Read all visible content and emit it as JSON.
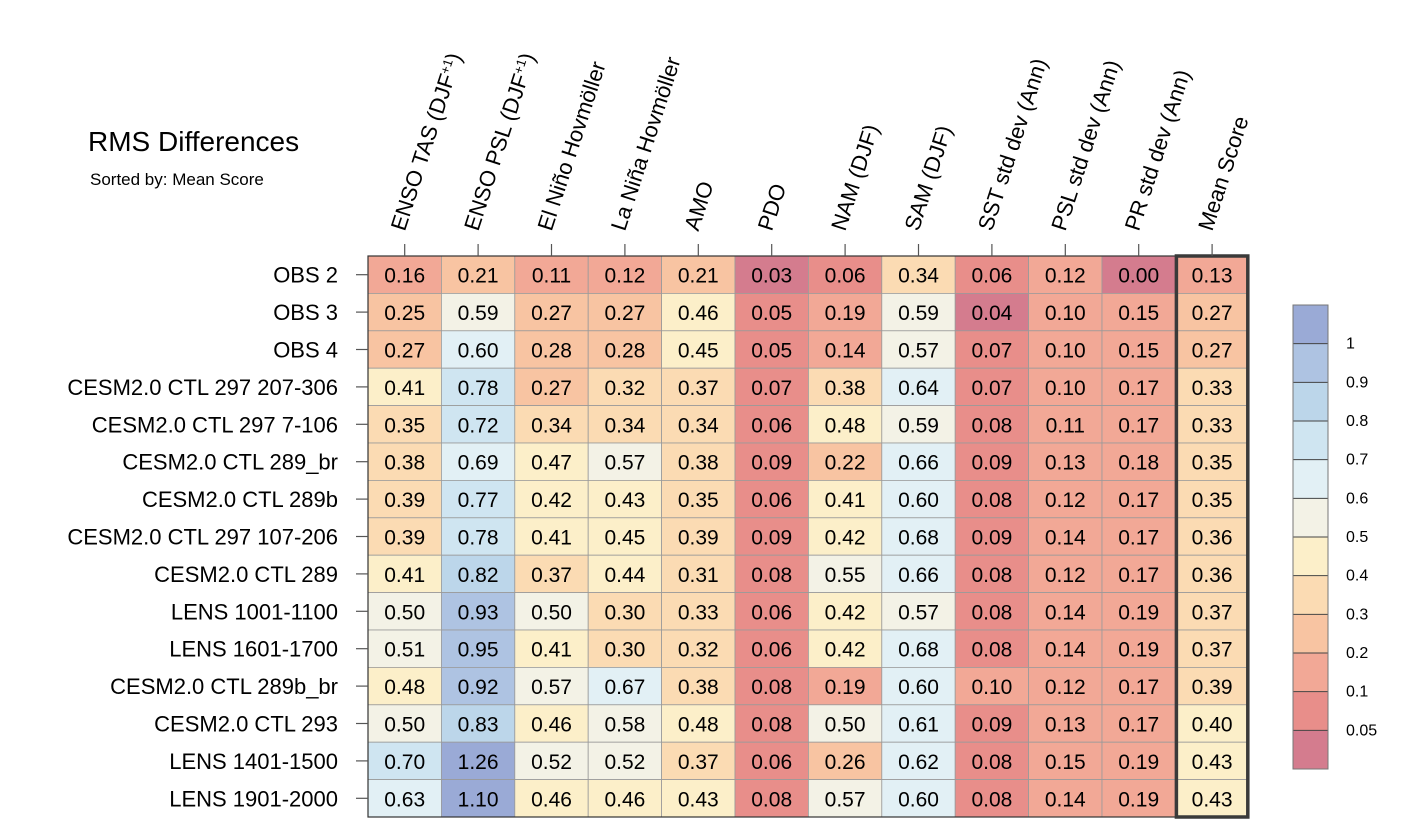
{
  "chart_data": {
    "type": "heatmap",
    "title": "RMS Differences",
    "subtitle": "Sorted by: Mean Score",
    "columns": [
      {
        "main": "ENSO TAS (DJF",
        "sup": "+1",
        "tail": ")"
      },
      {
        "main": "ENSO PSL (DJF",
        "sup": "+1",
        "tail": ")"
      },
      {
        "main": "El Niño Hovmöller",
        "sup": "",
        "tail": ""
      },
      {
        "main": "La Niña Hovmöller",
        "sup": "",
        "tail": ""
      },
      {
        "main": "AMO",
        "sup": "",
        "tail": ""
      },
      {
        "main": "PDO",
        "sup": "",
        "tail": ""
      },
      {
        "main": "NAM (DJF)",
        "sup": "",
        "tail": ""
      },
      {
        "main": "SAM (DJF)",
        "sup": "",
        "tail": ""
      },
      {
        "main": "SST std dev (Ann)",
        "sup": "",
        "tail": ""
      },
      {
        "main": "PSL std dev (Ann)",
        "sup": "",
        "tail": ""
      },
      {
        "main": "PR std dev (Ann)",
        "sup": "",
        "tail": ""
      },
      {
        "main": "Mean Score",
        "sup": "",
        "tail": ""
      }
    ],
    "rows": [
      "OBS 2",
      "OBS 3",
      "OBS 4",
      "CESM2.0 CTL 297 207-306",
      "CESM2.0 CTL 297 7-106",
      "CESM2.0 CTL 289_br",
      "CESM2.0 CTL 289b",
      "CESM2.0 CTL 297 107-206",
      "CESM2.0 CTL 289",
      "LENS 1001-1100",
      "LENS 1601-1700",
      "CESM2.0 CTL 289b_br",
      "CESM2.0 CTL 293",
      "LENS 1401-1500",
      "LENS 1901-2000"
    ],
    "values": [
      [
        "0.16",
        "0.21",
        "0.11",
        "0.12",
        "0.21",
        "0.03",
        "0.06",
        "0.34",
        "0.06",
        "0.12",
        "0.00",
        "0.13"
      ],
      [
        "0.25",
        "0.59",
        "0.27",
        "0.27",
        "0.46",
        "0.05",
        "0.19",
        "0.59",
        "0.04",
        "0.10",
        "0.15",
        "0.27"
      ],
      [
        "0.27",
        "0.60",
        "0.28",
        "0.28",
        "0.45",
        "0.05",
        "0.14",
        "0.57",
        "0.07",
        "0.10",
        "0.15",
        "0.27"
      ],
      [
        "0.41",
        "0.78",
        "0.27",
        "0.32",
        "0.37",
        "0.07",
        "0.38",
        "0.64",
        "0.07",
        "0.10",
        "0.17",
        "0.33"
      ],
      [
        "0.35",
        "0.72",
        "0.34",
        "0.34",
        "0.34",
        "0.06",
        "0.48",
        "0.59",
        "0.08",
        "0.11",
        "0.17",
        "0.33"
      ],
      [
        "0.38",
        "0.69",
        "0.47",
        "0.57",
        "0.38",
        "0.09",
        "0.22",
        "0.66",
        "0.09",
        "0.13",
        "0.18",
        "0.35"
      ],
      [
        "0.39",
        "0.77",
        "0.42",
        "0.43",
        "0.35",
        "0.06",
        "0.41",
        "0.60",
        "0.08",
        "0.12",
        "0.17",
        "0.35"
      ],
      [
        "0.39",
        "0.78",
        "0.41",
        "0.45",
        "0.39",
        "0.09",
        "0.42",
        "0.68",
        "0.09",
        "0.14",
        "0.17",
        "0.36"
      ],
      [
        "0.41",
        "0.82",
        "0.37",
        "0.44",
        "0.31",
        "0.08",
        "0.55",
        "0.66",
        "0.08",
        "0.12",
        "0.17",
        "0.36"
      ],
      [
        "0.50",
        "0.93",
        "0.50",
        "0.30",
        "0.33",
        "0.06",
        "0.42",
        "0.57",
        "0.08",
        "0.14",
        "0.19",
        "0.37"
      ],
      [
        "0.51",
        "0.95",
        "0.41",
        "0.30",
        "0.32",
        "0.06",
        "0.42",
        "0.68",
        "0.08",
        "0.14",
        "0.19",
        "0.37"
      ],
      [
        "0.48",
        "0.92",
        "0.57",
        "0.67",
        "0.38",
        "0.08",
        "0.19",
        "0.60",
        "0.10",
        "0.12",
        "0.17",
        "0.39"
      ],
      [
        "0.50",
        "0.83",
        "0.46",
        "0.58",
        "0.48",
        "0.08",
        "0.50",
        "0.61",
        "0.09",
        "0.13",
        "0.17",
        "0.40"
      ],
      [
        "0.70",
        "1.26",
        "0.52",
        "0.52",
        "0.37",
        "0.06",
        "0.26",
        "0.62",
        "0.08",
        "0.15",
        "0.19",
        "0.43"
      ],
      [
        "0.63",
        "1.10",
        "0.46",
        "0.46",
        "0.43",
        "0.08",
        "0.57",
        "0.60",
        "0.08",
        "0.14",
        "0.19",
        "0.43"
      ]
    ],
    "color_scale": {
      "boundaries": [
        0.05,
        0.1,
        0.2,
        0.3,
        0.4,
        0.5,
        0.6,
        0.7,
        0.8,
        0.9,
        1
      ],
      "labels": [
        "0.05",
        "0.1",
        "0.2",
        "0.3",
        "0.4",
        "0.5",
        "0.6",
        "0.7",
        "0.8",
        "0.9",
        "1"
      ],
      "colors": [
        "#d47c8e",
        "#e88e8a",
        "#f2a896",
        "#f8c4a2",
        "#fbdbb3",
        "#fcefc9",
        "#f3f2e6",
        "#e2f0f5",
        "#cfe5f1",
        "#bcd6ea",
        "#aec3e2",
        "#9aaad6"
      ]
    },
    "highlight_column": "Mean Score"
  }
}
